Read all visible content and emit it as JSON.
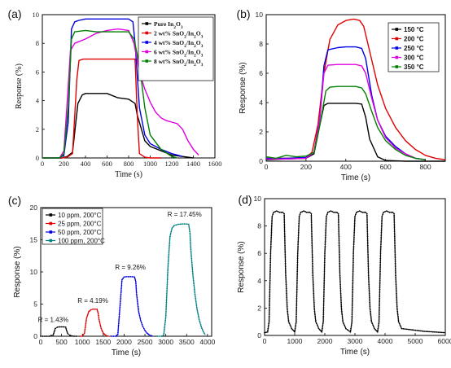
{
  "chart_data": [
    {
      "panel": "(a)",
      "type": "line",
      "xlabel": "Time (s)",
      "ylabel": "Response (%)",
      "xlim": [
        0,
        1600
      ],
      "ylim": [
        0,
        10
      ],
      "xticks": [
        "0",
        "200",
        "400",
        "600",
        "800",
        "1000",
        "1200",
        "1400",
        "1600"
      ],
      "yticks": [
        "0",
        "2",
        "4",
        "6",
        "8",
        "10"
      ],
      "legend_position": "top-right",
      "series": [
        {
          "name": "Pure In2O3",
          "color": "#000000",
          "x": [
            0,
            100,
            180,
            230,
            280,
            330,
            370,
            400,
            500,
            600,
            700,
            800,
            860,
            880,
            950,
            1000,
            1100,
            1200,
            1300,
            1400
          ],
          "y": [
            0,
            0,
            0,
            0.1,
            0.4,
            3.8,
            4.4,
            4.5,
            4.5,
            4.5,
            4.2,
            4.1,
            3.8,
            3.0,
            1.2,
            0.8,
            0.5,
            0.2,
            0.1,
            0
          ]
        },
        {
          "name": "2 wt% SnO2/In2O3",
          "color": "#e00000",
          "x": [
            0,
            180,
            230,
            280,
            320,
            340,
            380,
            500,
            600,
            700,
            800,
            860,
            880,
            900,
            950,
            1000,
            1100
          ],
          "y": [
            0,
            0,
            0.05,
            0.3,
            5.5,
            6.8,
            6.9,
            6.9,
            6.9,
            6.9,
            6.9,
            6.9,
            3.0,
            0.3,
            0.05,
            0,
            0
          ]
        },
        {
          "name": "4 wt% SnO2/In2O3",
          "color": "#0000e0",
          "x": [
            0,
            160,
            200,
            240,
            270,
            300,
            340,
            400,
            500,
            600,
            700,
            800,
            840,
            860,
            900,
            950,
            1000,
            1100,
            1200,
            1300
          ],
          "y": [
            0,
            0,
            0.2,
            2.5,
            9.0,
            9.5,
            9.6,
            9.7,
            9.7,
            9.7,
            9.7,
            9.7,
            9.5,
            8.0,
            3.5,
            1.6,
            1.0,
            0.6,
            0.3,
            0.1
          ]
        },
        {
          "name": "6 wt% SnO2/In2O3",
          "color": "#e000e0",
          "x": [
            0,
            160,
            200,
            240,
            260,
            300,
            400,
            500,
            600,
            700,
            800,
            850,
            900,
            950,
            1000,
            1050,
            1100,
            1150,
            1200,
            1250,
            1300,
            1350,
            1400,
            1450
          ],
          "y": [
            0,
            0,
            0.5,
            5.0,
            7.5,
            8.0,
            8.3,
            8.7,
            8.9,
            9.0,
            8.9,
            8.0,
            6.0,
            4.8,
            3.9,
            3.2,
            2.8,
            2.6,
            2.5,
            2.4,
            2.0,
            1.2,
            0.6,
            0.2
          ]
        },
        {
          "name": "8 wt% SnO2/In2O3",
          "color": "#008000",
          "x": [
            0,
            160,
            200,
            240,
            270,
            300,
            400,
            500,
            600,
            700,
            800,
            850,
            900,
            950,
            1000,
            1100,
            1200,
            1250
          ],
          "y": [
            0,
            0,
            0.3,
            3.5,
            8.3,
            8.8,
            8.9,
            8.8,
            8.8,
            8.8,
            8.8,
            8.3,
            6.5,
            3.5,
            1.6,
            0.6,
            0.1,
            0
          ]
        }
      ],
      "legend": [
        "Pure In2O3",
        "2 wt% SnO2/In2O3",
        "4 wt% SnO2/In2O3",
        "6 wt% SnO2/In2O3",
        "8 wt% SnO2/In2O3"
      ]
    },
    {
      "panel": "(b)",
      "type": "line",
      "xlabel": "Time (s)",
      "ylabel": "Response (%)",
      "xlim": [
        0,
        900
      ],
      "ylim": [
        0,
        10
      ],
      "xticks": [
        "0",
        "200",
        "400",
        "600",
        "800"
      ],
      "yticks": [
        "0",
        "2",
        "4",
        "6",
        "8",
        "10"
      ],
      "legend_position": "top-right",
      "series": [
        {
          "name": "150 °C",
          "color": "#000000",
          "x": [
            0,
            100,
            200,
            240,
            270,
            290,
            310,
            350,
            400,
            450,
            480,
            500,
            520,
            560,
            600,
            700,
            800,
            900
          ],
          "y": [
            0.1,
            0.15,
            0.2,
            0.5,
            2.5,
            3.8,
            3.95,
            3.95,
            3.95,
            3.95,
            3.9,
            3.0,
            1.5,
            0.3,
            0.05,
            0,
            0,
            0
          ]
        },
        {
          "name": "200 °C",
          "color": "#e00000",
          "x": [
            0,
            100,
            200,
            230,
            260,
            290,
            320,
            360,
            400,
            440,
            470,
            490,
            520,
            560,
            600,
            650,
            700,
            750,
            800,
            850,
            900
          ],
          "y": [
            0.2,
            0.2,
            0.25,
            0.6,
            2.5,
            6.0,
            8.3,
            9.3,
            9.6,
            9.7,
            9.6,
            9.2,
            7.5,
            5.2,
            3.6,
            2.3,
            1.4,
            0.8,
            0.4,
            0.2,
            0.1
          ]
        },
        {
          "name": "250 °C",
          "color": "#0000e0",
          "x": [
            0,
            100,
            200,
            240,
            270,
            290,
            310,
            360,
            400,
            450,
            480,
            500,
            530,
            560,
            600,
            650,
            700,
            750,
            800
          ],
          "y": [
            0.2,
            0.2,
            0.25,
            0.6,
            3.0,
            6.5,
            7.6,
            7.75,
            7.8,
            7.8,
            7.7,
            7.0,
            4.5,
            2.8,
            1.7,
            1.0,
            0.5,
            0.2,
            0.1
          ]
        },
        {
          "name": "300 °C",
          "color": "#e000e0",
          "x": [
            0,
            100,
            200,
            240,
            270,
            290,
            310,
            360,
            400,
            450,
            480,
            500,
            530,
            560,
            600,
            650,
            700,
            750,
            800
          ],
          "y": [
            0.15,
            0.15,
            0.2,
            0.6,
            3.0,
            6.0,
            6.55,
            6.6,
            6.6,
            6.6,
            6.5,
            6.0,
            4.3,
            2.8,
            1.6,
            0.9,
            0.5,
            0.2,
            0.1
          ]
        },
        {
          "name": "350 °C",
          "color": "#008000",
          "x": [
            0,
            50,
            100,
            150,
            200,
            240,
            270,
            300,
            320,
            360,
            400,
            450,
            480,
            500,
            530,
            560,
            600,
            650,
            700,
            750,
            800
          ],
          "y": [
            0.3,
            0.2,
            0.4,
            0.3,
            0.35,
            0.6,
            2.5,
            4.8,
            5.05,
            5.1,
            5.1,
            5.1,
            5.0,
            4.6,
            3.4,
            2.3,
            1.4,
            0.8,
            0.4,
            0.2,
            0.1
          ]
        }
      ],
      "legend": [
        "150 °C",
        "200 °C",
        "250 °C",
        "300 °C",
        "350 °C"
      ]
    },
    {
      "panel": "(c)",
      "type": "scatter",
      "xlabel": "Time (s)",
      "ylabel": "Response (%)",
      "xlim": [
        0,
        4100
      ],
      "ylim": [
        0,
        20
      ],
      "xticks": [
        "0",
        "500",
        "1000",
        "1500",
        "2000",
        "2500",
        "3000",
        "3500",
        "4000"
      ],
      "yticks": [
        "0",
        "5",
        "10",
        "15",
        "20"
      ],
      "legend_position": "top-left",
      "series": [
        {
          "name": "10 ppm, 200°C",
          "color": "#000000",
          "x": [
            0,
            100,
            200,
            300,
            350,
            400,
            450,
            500,
            550,
            600,
            620,
            650,
            700,
            750,
            800,
            850,
            900
          ],
          "y": [
            0,
            0,
            0,
            0.2,
            1.2,
            1.4,
            1.45,
            1.45,
            1.45,
            1.4,
            0.9,
            0.4,
            0.15,
            0.05,
            0,
            0,
            0
          ]
        },
        {
          "name": "25 ppm, 200°C",
          "color": "#e00000",
          "x": [
            950,
            1000,
            1050,
            1100,
            1150,
            1200,
            1250,
            1300,
            1350,
            1380,
            1400,
            1450,
            1500,
            1550,
            1600,
            1650
          ],
          "y": [
            0,
            0,
            0.5,
            2.8,
            3.8,
            4.1,
            4.2,
            4.2,
            4.2,
            3.5,
            2.6,
            1.2,
            0.5,
            0.2,
            0.05,
            0
          ]
        },
        {
          "name": "50 ppm, 200°C",
          "color": "#0000e0",
          "x": [
            1700,
            1800,
            1850,
            1900,
            1950,
            2000,
            2050,
            2100,
            2150,
            2200,
            2250,
            2280,
            2300,
            2350,
            2400,
            2450,
            2500,
            2550,
            2600,
            2650,
            2700
          ],
          "y": [
            0,
            0,
            0.3,
            4.5,
            8.8,
            9.2,
            9.25,
            9.25,
            9.25,
            9.25,
            9.2,
            8.5,
            6.5,
            3.8,
            2.4,
            1.5,
            0.9,
            0.5,
            0.2,
            0.1,
            0
          ]
        },
        {
          "name": "100 ppm, 200°C",
          "color": "#008080",
          "x": [
            2800,
            2900,
            2950,
            3000,
            3050,
            3100,
            3150,
            3200,
            3300,
            3400,
            3500,
            3550,
            3580,
            3600,
            3650,
            3700,
            3750,
            3800,
            3850,
            3900,
            3950
          ],
          "y": [
            0,
            0,
            0.2,
            3.0,
            10.5,
            15.5,
            16.8,
            17.2,
            17.4,
            17.45,
            17.45,
            17.4,
            16.0,
            13.5,
            9.5,
            6.5,
            4.2,
            2.6,
            1.5,
            0.7,
            0.2
          ]
        }
      ],
      "annotations": [
        "R = 1.43%",
        "R = 4.19%",
        "R = 9.26%",
        "R = 17.45%"
      ],
      "legend": [
        "10 ppm, 200°C",
        "25 ppm, 200°C",
        "50 ppm, 200°C",
        "100 ppm, 200°C"
      ]
    },
    {
      "panel": "(d)",
      "type": "scatter",
      "xlabel": "Time (s)",
      "ylabel": "Response (%)",
      "xlim": [
        0,
        6000
      ],
      "ylim": [
        0,
        10
      ],
      "xticks": [
        "0",
        "1000",
        "2000",
        "3000",
        "4000",
        "5000",
        "6000"
      ],
      "yticks": [
        "0",
        "2",
        "4",
        "6",
        "8",
        "10"
      ],
      "cycles_start": [
        150,
        1050,
        1950,
        2900,
        3800
      ],
      "plateau": 9.0,
      "series": [
        {
          "name": "",
          "color": "#000000",
          "x": [
            0,
            100,
            150,
            200,
            250,
            300,
            400,
            500,
            600,
            650,
            700,
            750,
            800,
            900
          ],
          "y": [
            0.2,
            0.25,
            1.0,
            6.0,
            8.7,
            9.0,
            9.1,
            9.0,
            9.0,
            8.9,
            4.5,
            2.0,
            1.0,
            0.5
          ]
        }
      ]
    }
  ]
}
